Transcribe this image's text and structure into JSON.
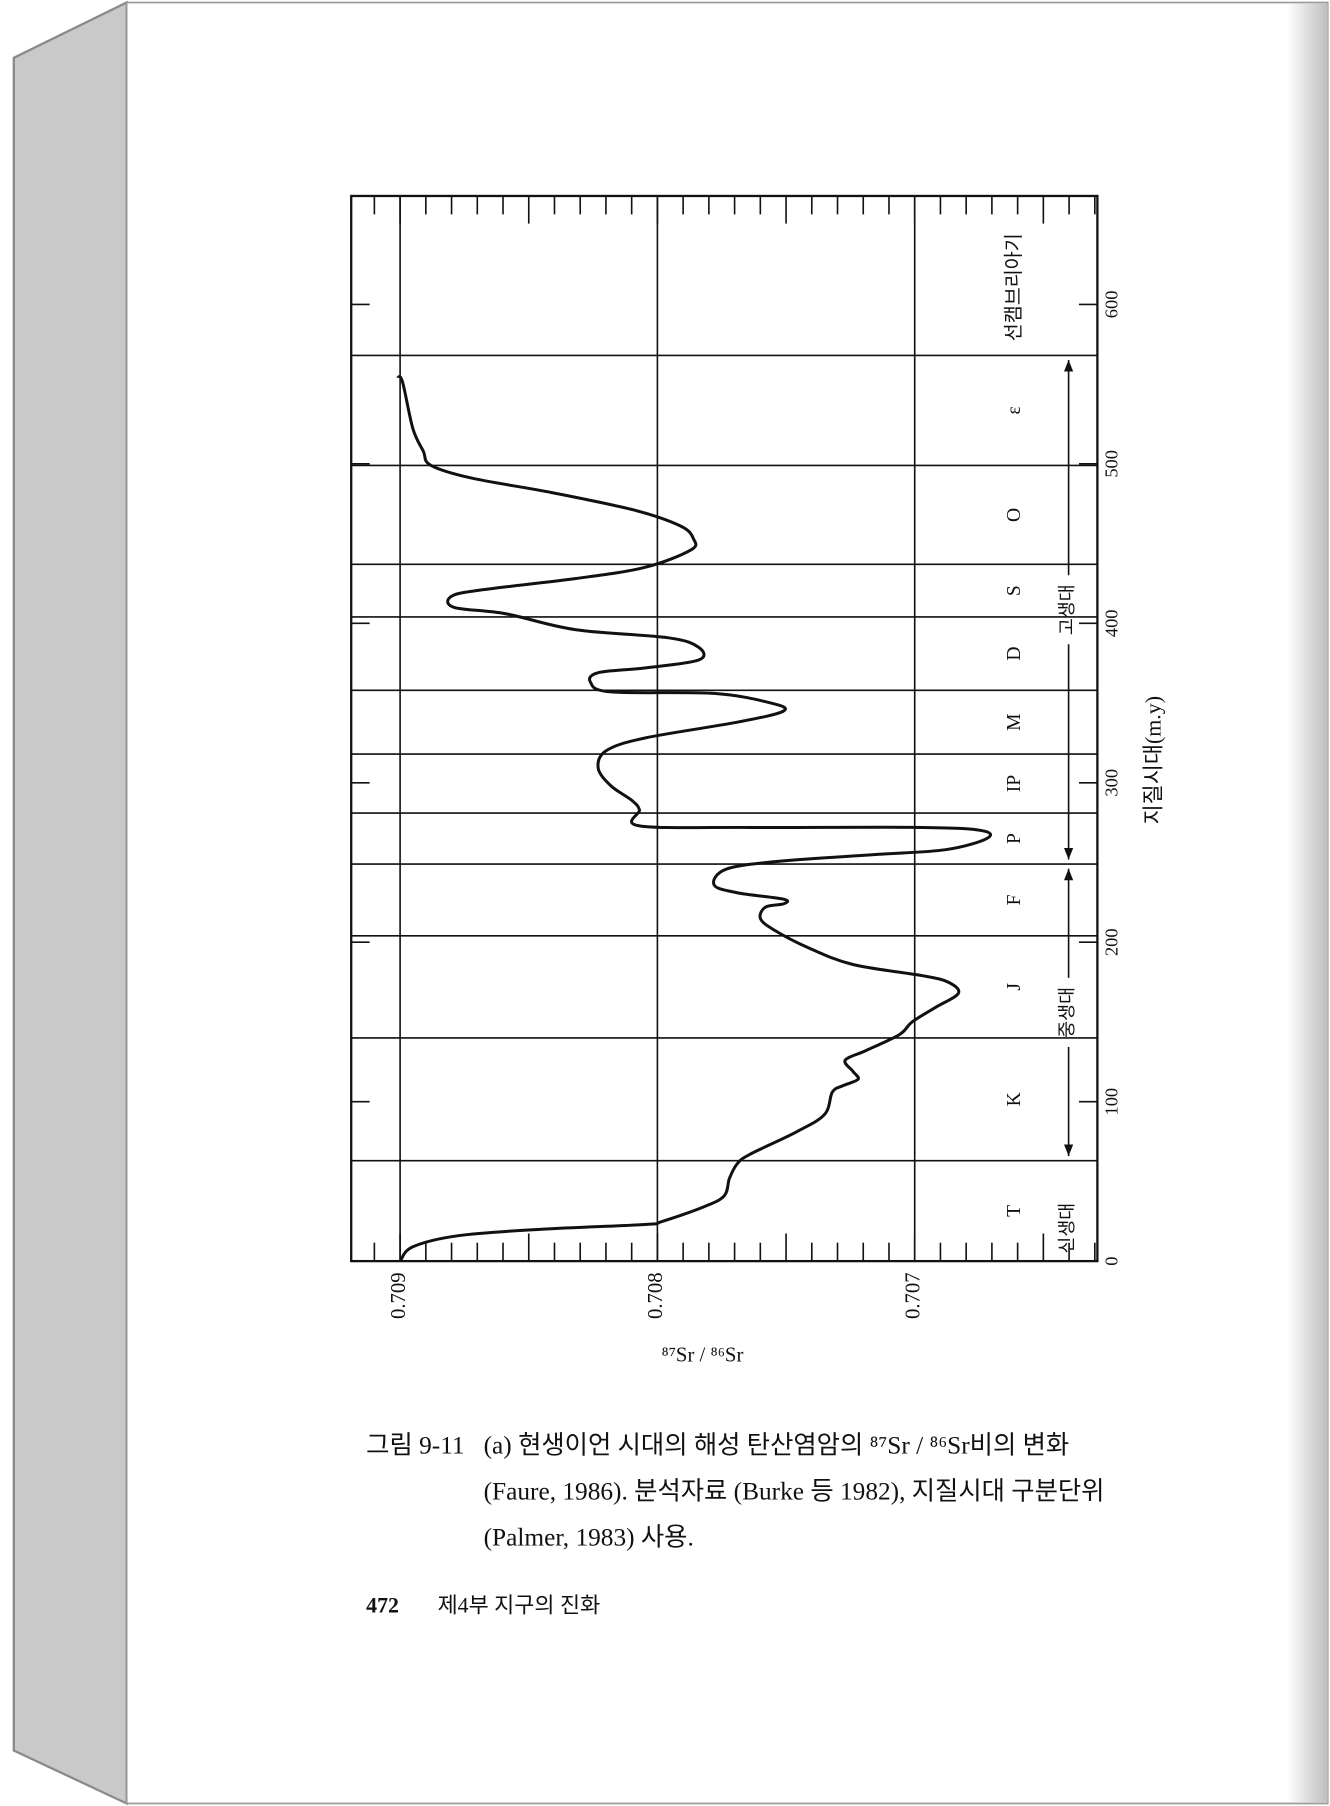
{
  "chart_data": {
    "type": "line",
    "xlabel": "지질시대(m.y)",
    "ylabel": "⁸⁷Sr / ⁸⁶Sr",
    "xlim": [
      0,
      668
    ],
    "xticks": [
      0,
      100,
      200,
      300,
      400,
      500,
      600
    ],
    "ylim": [
      0.70629,
      0.70919
    ],
    "yticks": [
      0.709,
      0.708,
      0.707
    ],
    "grid": true,
    "boundaries": [
      63,
      140,
      204,
      249,
      281,
      318,
      358,
      404,
      437,
      499,
      568
    ],
    "periods": [
      "T",
      "K",
      "J",
      "F",
      "P",
      "IP",
      "M",
      "D",
      "S",
      "O",
      "ε",
      "선캠브리아기"
    ],
    "eras": [
      "신생대",
      "중생대",
      "고생대"
    ],
    "x": [
      0,
      9,
      16,
      20,
      23,
      25,
      34,
      41,
      52,
      61,
      67,
      81,
      92,
      106,
      110,
      114,
      119,
      126,
      132,
      142,
      150,
      159,
      168,
      175,
      179,
      186,
      197,
      208,
      215,
      222,
      224,
      227,
      231,
      236,
      246,
      251,
      255,
      258,
      265,
      270,
      272,
      272,
      273,
      283,
      289,
      298,
      309,
      320,
      328,
      338,
      345,
      350,
      356,
      357,
      363,
      369,
      372,
      377,
      385,
      391,
      396,
      406,
      410,
      417,
      421,
      428,
      435,
      446,
      453,
      461,
      471,
      482,
      491,
      499,
      508,
      522,
      551,
      555
    ],
    "series": [
      {
        "name": "⁸⁷Sr / ⁸⁶Sr",
        "color": "#111111",
        "values": [
          0.709,
          0.70895,
          0.70877,
          0.70845,
          0.70805,
          0.70798,
          0.70782,
          0.70774,
          0.70772,
          0.70769,
          0.70764,
          0.70746,
          0.70735,
          0.70732,
          0.70728,
          0.70722,
          0.70724,
          0.70727,
          0.70719,
          0.70706,
          0.70701,
          0.70692,
          0.70683,
          0.70687,
          0.70697,
          0.70724,
          0.70742,
          0.70755,
          0.7076,
          0.70758,
          0.70751,
          0.70751,
          0.70769,
          0.70778,
          0.70773,
          0.70751,
          0.70715,
          0.70688,
          0.70672,
          0.70674,
          0.70697,
          0.70764,
          0.70807,
          0.70807,
          0.7081,
          0.70818,
          0.70823,
          0.7082,
          0.70805,
          0.70769,
          0.70751,
          0.70756,
          0.70778,
          0.70818,
          0.70826,
          0.70823,
          0.70805,
          0.70784,
          0.70784,
          0.70796,
          0.70832,
          0.70859,
          0.70879,
          0.7088,
          0.70868,
          0.70832,
          0.70805,
          0.70787,
          0.70786,
          0.70791,
          0.70809,
          0.70841,
          0.70872,
          0.70888,
          0.70891,
          0.70895,
          0.70899,
          0.70901
        ]
      }
    ]
  },
  "caption": {
    "label": "그림 9-11",
    "lines": [
      "(a) 현생이언 시대의 해성 탄산염암의 ⁸⁷Sr / ⁸⁶Sr비의 변화",
      "(Faure, 1986). 분석자료 (Burke 등 1982), 지질시대 구분단위",
      "(Palmer, 1983) 사용."
    ]
  },
  "footer": {
    "page": "472",
    "section": "제4부  지구의 진화"
  }
}
